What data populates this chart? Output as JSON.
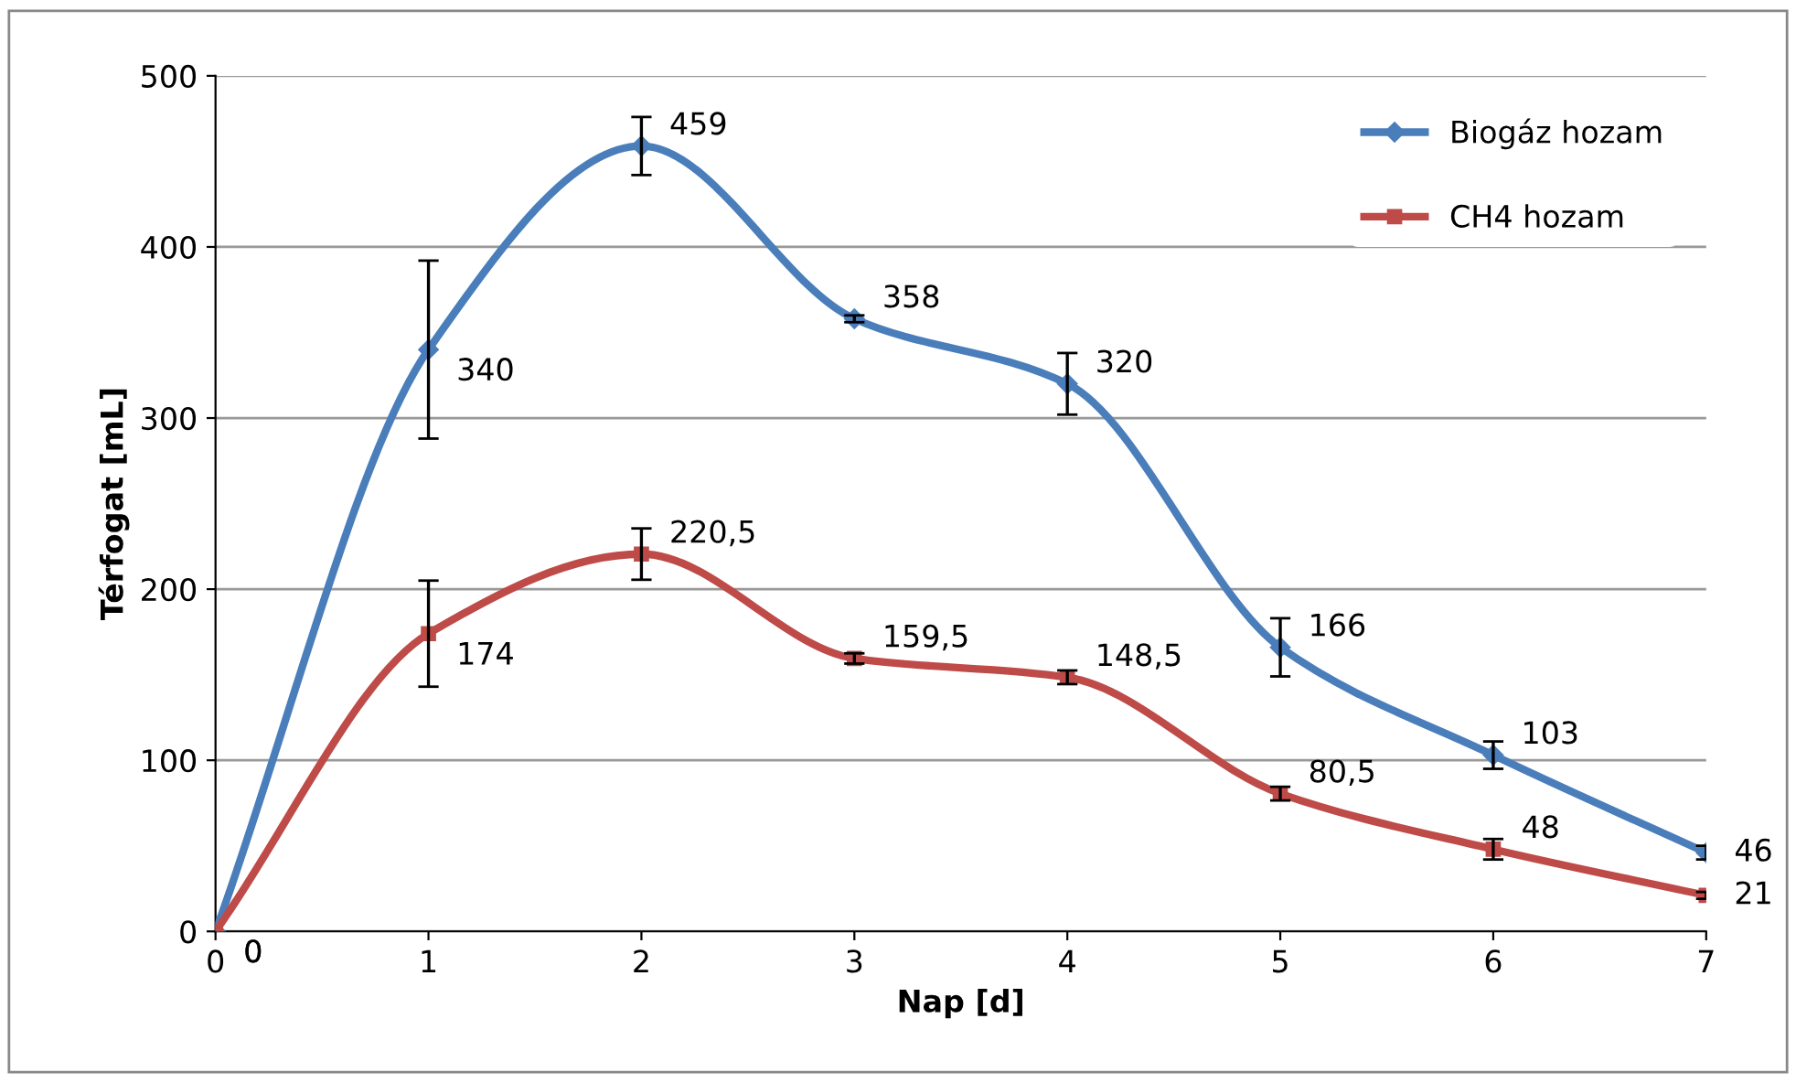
{
  "chart_data": {
    "type": "line",
    "xlabel": "Nap [d]",
    "ylabel": "Térfogat [mL]",
    "x": [
      0,
      1,
      2,
      3,
      4,
      5,
      6,
      7
    ],
    "series": [
      {
        "name": "Biogáz hozam",
        "color": "#4a7ebb",
        "marker": "diamond",
        "values": [
          0,
          340,
          459,
          358,
          320,
          166,
          103,
          46
        ],
        "errors": [
          null,
          52,
          17,
          2,
          18,
          17,
          8,
          4
        ],
        "value_labels": [
          "0",
          "340",
          "459",
          "358",
          "320",
          "166",
          "103",
          "46"
        ]
      },
      {
        "name": "CH4 hozam",
        "color": "#be4b48",
        "marker": "square",
        "values": [
          0,
          174,
          220.5,
          159.5,
          148.5,
          80.5,
          48,
          21
        ],
        "errors": [
          null,
          31,
          15,
          3,
          4,
          4,
          6,
          2
        ],
        "value_labels": [
          "0",
          "174",
          "220,5",
          "159,5",
          "148,5",
          "80,5",
          "48",
          "21"
        ]
      }
    ],
    "xlim": [
      0,
      7
    ],
    "xticks": [
      0,
      1,
      2,
      3,
      4,
      5,
      6,
      7
    ],
    "ylim": [
      0,
      500
    ],
    "yticks": [
      0,
      100,
      200,
      300,
      400,
      500
    ],
    "grid": "y",
    "legend": "top right",
    "line_style": "solid"
  }
}
